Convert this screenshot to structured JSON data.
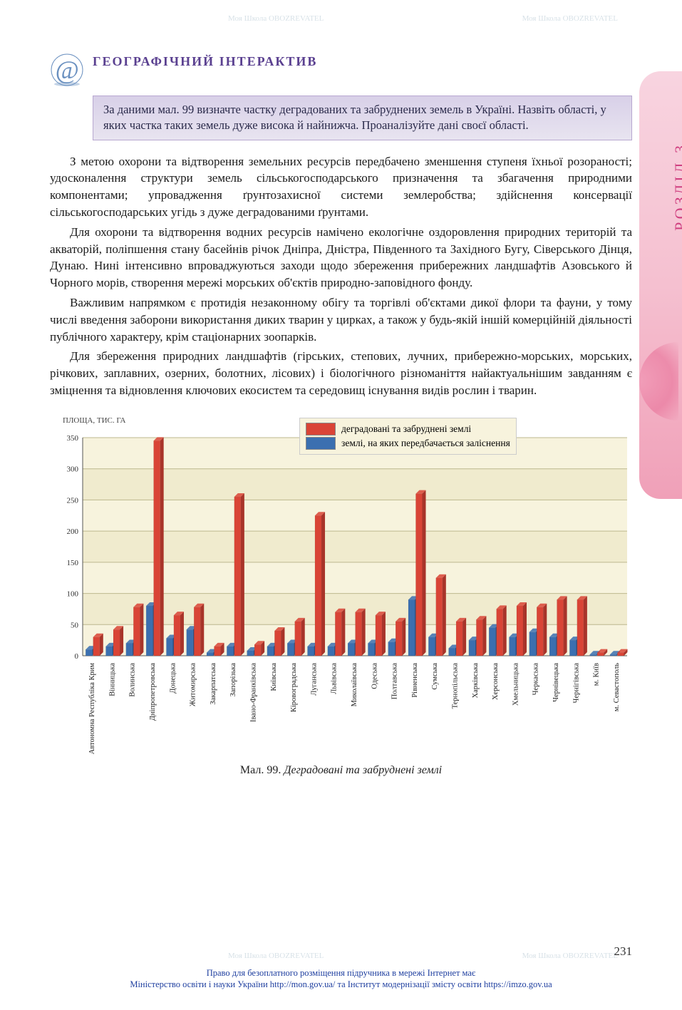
{
  "side_tab": "РОЗДІЛ 3",
  "header": {
    "title": "ГЕОГРАФІЧНИЙ ІНТЕРАКТИВ",
    "intro": "За даними мал. 99 визначте частку деградованих та забруднених земель в Україні. Назвіть області, у яких частка таких земель дуже висока й найнижча. Проаналізуйте дані своєї області."
  },
  "paragraphs": [
    "З метою охорони та відтворення земельних ресурсів передбачено зменшення ступеня їхньої розораності; удосконалення структури земель сільськогосподарського призначення та збагачення природними компонентами; упровадження ґрунтозахисної системи землеробства; здійснення консервації сільськогосподарських угідь з дуже деградованими ґрунтами.",
    "Для охорони та відтворення водних ресурсів намічено екологічне оздоровлення природних територій та акваторій, поліпшення стану басейнів річок Дніпра, Дністра, Південного та Західного Бугу, Сіверського Дінця, Дунаю. Нині інтенсивно впроваджуються заходи щодо збереження прибережних ландшафтів Азовського й Чорного морів, створення мережі морських об'єктів природно-заповідного фонду.",
    "Важливим напрямком є протидія незаконному обігу та торгівлі об'єктами дикої флори та фауни, у тому числі введення заборони використання диких тварин у цирках, а також у будь-якій іншій комерційній діяльності публічного характеру, крім стаціонарних зоопарків.",
    "Для збереження природних ландшафтів (гірських, степових, лучних, прибережно-морських, морських, річкових, заплавних, озерних, болотних, лісових) і біологічного різноманіття найактуальнішим завданням є зміцнення та відновлення ключових екосистем та середовищ існування видів рослин і тварин."
  ],
  "chart": {
    "type": "grouped-3d-bar",
    "ylabel": "ПЛОЩА, ТИС. ГА",
    "ylim": [
      0,
      350
    ],
    "ytick_step": 50,
    "yticks": [
      0,
      50,
      100,
      150,
      200,
      250,
      300,
      350
    ],
    "plot_bg": "#f7f3dd",
    "band_colors": [
      "#f7f3dd",
      "#f0ebce"
    ],
    "grid_color": "#bcb88e",
    "bar_colors": {
      "red": "#d94436",
      "red_side": "#a8342a",
      "blue": "#3b6fb0",
      "blue_side": "#2a5288"
    },
    "legend": [
      {
        "color": "#d94436",
        "label": "деградовані та забруднені землі"
      },
      {
        "color": "#3b6fb0",
        "label": "землі, на яких передбачається заліснення"
      }
    ],
    "categories": [
      "Автономна Республіка Крим",
      "Вінницька",
      "Волинська",
      "Дніпропетровська",
      "Донецька",
      "Житомирська",
      "Закарпатська",
      "Запорізька",
      "Івано-Франківська",
      "Київська",
      "Кіровоградська",
      "Луганська",
      "Львівська",
      "Миколаївська",
      "Одеська",
      "Полтавська",
      "Рівненська",
      "Сумська",
      "Тернопільська",
      "Харківська",
      "Херсонська",
      "Хмельницька",
      "Черкаська",
      "Чернівецька",
      "Чернігівська",
      "м. Київ",
      "м. Севастополь"
    ],
    "red_values": [
      30,
      42,
      78,
      345,
      65,
      78,
      15,
      255,
      18,
      40,
      55,
      225,
      70,
      70,
      65,
      55,
      260,
      125,
      55,
      58,
      75,
      80,
      78,
      90,
      90,
      5,
      5
    ],
    "blue_values": [
      10,
      15,
      20,
      80,
      28,
      42,
      5,
      15,
      8,
      15,
      20,
      15,
      15,
      20,
      20,
      22,
      90,
      30,
      12,
      25,
      45,
      30,
      38,
      30,
      25,
      2,
      2
    ],
    "caption_prefix": "Мал. 99.",
    "caption_title": "Деградовані та забруднені землі"
  },
  "page_number": "231",
  "footer_line1": "Право для безоплатного розміщення підручника в мережі Інтернет має",
  "footer_line2": "Міністерство освіти і науки України http://mon.gov.ua/ та Інститут модернізації змісту освіти https://imzo.gov.ua",
  "watermark_text": "Моя Школа OBOZREVATEL"
}
